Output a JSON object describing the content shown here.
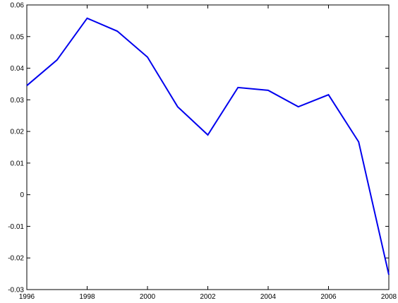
{
  "chart_data": {
    "type": "line",
    "x": [
      1996,
      1997,
      1998,
      1999,
      2000,
      2001,
      2002,
      2003,
      2004,
      2005,
      2006,
      2007,
      2008
    ],
    "series": [
      {
        "color": "#0000ee",
        "values": [
          0.0345,
          0.0426,
          0.0558,
          0.0517,
          0.0435,
          0.0278,
          0.0189,
          0.0339,
          0.033,
          0.0278,
          0.0316,
          0.0167,
          -0.0253
        ]
      }
    ],
    "xlim": [
      1996,
      2008
    ],
    "xticks": [
      1996,
      1998,
      2000,
      2002,
      2004,
      2006,
      2008
    ],
    "ylim": [
      -0.03,
      0.06
    ],
    "yticks": [
      -0.03,
      -0.02,
      -0.01,
      0,
      0.01,
      0.02,
      0.03,
      0.04,
      0.05,
      0.06
    ],
    "grid": false
  }
}
